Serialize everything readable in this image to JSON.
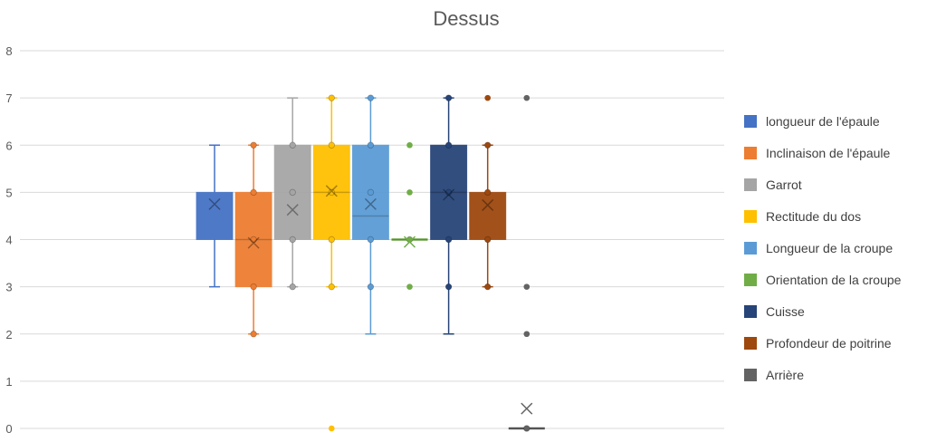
{
  "chart_data": {
    "type": "box",
    "title": "Dessus",
    "xlabel": "",
    "ylabel": "",
    "ylim": [
      0,
      8
    ],
    "yticks": [
      "0",
      "1",
      "2",
      "3",
      "4",
      "5",
      "6",
      "7",
      "8"
    ],
    "grid": true,
    "legend_position": "right",
    "series": [
      {
        "name": "longueur de l'épaule",
        "color": "#4472C4",
        "min": 3,
        "q1": 4,
        "median": null,
        "q3": 5,
        "max": 6,
        "mean": 4.75,
        "points": [],
        "outliers": []
      },
      {
        "name": "Inclinaison de l'épaule",
        "color": "#ED7D31",
        "min": 2,
        "q1": 3,
        "median": 4,
        "q3": 5,
        "max": 6,
        "mean": 3.93,
        "points": [
          2,
          3,
          4,
          5,
          6
        ],
        "outliers": []
      },
      {
        "name": "Garrot",
        "color": "#A5A5A5",
        "min": 3,
        "q1": 4,
        "median": null,
        "q3": 6,
        "max": 7,
        "mean": 4.63,
        "points": [
          3,
          4,
          5,
          6
        ],
        "outliers": []
      },
      {
        "name": "Rectitude du dos",
        "color": "#FFC000",
        "min": 3,
        "q1": 4,
        "median": 5,
        "q3": 6,
        "max": 7,
        "mean": 5.03,
        "points": [
          3,
          4,
          5,
          6,
          7
        ],
        "outliers": [
          0
        ]
      },
      {
        "name": "Longueur de la croupe",
        "color": "#5B9BD5",
        "min": 2,
        "q1": 4,
        "median": 4.5,
        "q3": 6,
        "max": 7,
        "mean": 4.75,
        "points": [
          3,
          4,
          5,
          6,
          7
        ],
        "outliers": []
      },
      {
        "name": "Orientation de la croupe",
        "color": "#70AD47",
        "min": 4,
        "q1": 4,
        "median": 4,
        "q3": 4,
        "max": 4,
        "mean": 3.95,
        "points": [
          4
        ],
        "outliers": [
          3,
          5,
          6
        ]
      },
      {
        "name": "Cuisse",
        "color": "#264478",
        "min": 2,
        "q1": 4,
        "median": 5,
        "q3": 6,
        "max": 7,
        "mean": 4.95,
        "points": [
          3,
          4,
          5,
          6,
          7
        ],
        "outliers": []
      },
      {
        "name": "Profondeur de poitrine",
        "color": "#9E480E",
        "min": 3,
        "q1": 4,
        "median": null,
        "q3": 5,
        "max": 6,
        "mean": 4.73,
        "points": [
          3,
          4,
          5,
          6
        ],
        "outliers": [
          7
        ]
      },
      {
        "name": "Arrière",
        "color": "#636363",
        "min": 0,
        "q1": 0,
        "median": 0,
        "q3": 0,
        "max": 0,
        "mean": 0.42,
        "points": [
          0
        ],
        "outliers": [
          2,
          3,
          7
        ]
      }
    ]
  }
}
